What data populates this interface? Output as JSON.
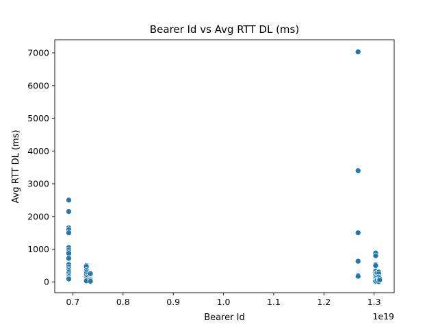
{
  "chart_data": {
    "type": "scatter",
    "title": "Bearer Id vs Avg RTT DL (ms)",
    "xlabel": "Bearer Id",
    "ylabel": "Avg RTT DL (ms)",
    "x_offset_label": "1e19",
    "xlim": [
      0.664,
      1.34
    ],
    "ylim": [
      -330,
      7400
    ],
    "xticks": [
      0.7,
      0.8,
      0.9,
      1.0,
      1.1,
      1.2,
      1.3
    ],
    "xtick_labels": [
      "0.7",
      "0.8",
      "0.9",
      "1.0",
      "1.1",
      "1.2",
      "1.3"
    ],
    "yticks": [
      0,
      1000,
      2000,
      3000,
      4000,
      5000,
      6000,
      7000
    ],
    "ytick_labels": [
      "0",
      "1000",
      "2000",
      "3000",
      "4000",
      "5000",
      "6000",
      "7000"
    ],
    "grid": false,
    "marker_color": "#1f77b4",
    "series": [
      {
        "points": [
          [
            0.692,
            2500
          ],
          [
            0.692,
            2150
          ],
          [
            0.692,
            1650
          ],
          [
            0.692,
            1600
          ],
          [
            0.692,
            1500
          ],
          [
            0.692,
            1050
          ],
          [
            0.692,
            980
          ],
          [
            0.692,
            920
          ],
          [
            0.692,
            870
          ],
          [
            0.692,
            720
          ],
          [
            0.692,
            530
          ],
          [
            0.692,
            460
          ],
          [
            0.692,
            400
          ],
          [
            0.692,
            350
          ],
          [
            0.692,
            300
          ],
          [
            0.692,
            250
          ],
          [
            0.692,
            200
          ],
          [
            0.692,
            160
          ],
          [
            0.692,
            120
          ],
          [
            0.692,
            90
          ],
          [
            0.727,
            500
          ],
          [
            0.727,
            470
          ],
          [
            0.727,
            350
          ],
          [
            0.727,
            300
          ],
          [
            0.727,
            250
          ],
          [
            0.727,
            200
          ],
          [
            0.727,
            150
          ],
          [
            0.727,
            100
          ],
          [
            0.727,
            60
          ],
          [
            0.727,
            30
          ],
          [
            0.735,
            250
          ],
          [
            0.735,
            60
          ],
          [
            0.735,
            20
          ],
          [
            1.268,
            7030
          ],
          [
            1.268,
            3400
          ],
          [
            1.268,
            1500
          ],
          [
            1.268,
            630
          ],
          [
            1.268,
            200
          ],
          [
            1.268,
            170
          ],
          [
            1.303,
            880
          ],
          [
            1.303,
            800
          ],
          [
            1.303,
            530
          ],
          [
            1.303,
            500
          ],
          [
            1.303,
            330
          ],
          [
            1.303,
            250
          ],
          [
            1.303,
            200
          ],
          [
            1.303,
            150
          ],
          [
            1.303,
            100
          ],
          [
            1.303,
            50
          ],
          [
            1.303,
            20
          ],
          [
            1.306,
            280
          ],
          [
            1.306,
            60
          ],
          [
            1.309,
            300
          ],
          [
            1.309,
            250
          ],
          [
            1.309,
            150
          ],
          [
            1.309,
            80
          ],
          [
            1.309,
            40
          ],
          [
            1.309,
            10
          ],
          [
            1.311,
            100
          ],
          [
            1.311,
            60
          ]
        ]
      }
    ]
  }
}
